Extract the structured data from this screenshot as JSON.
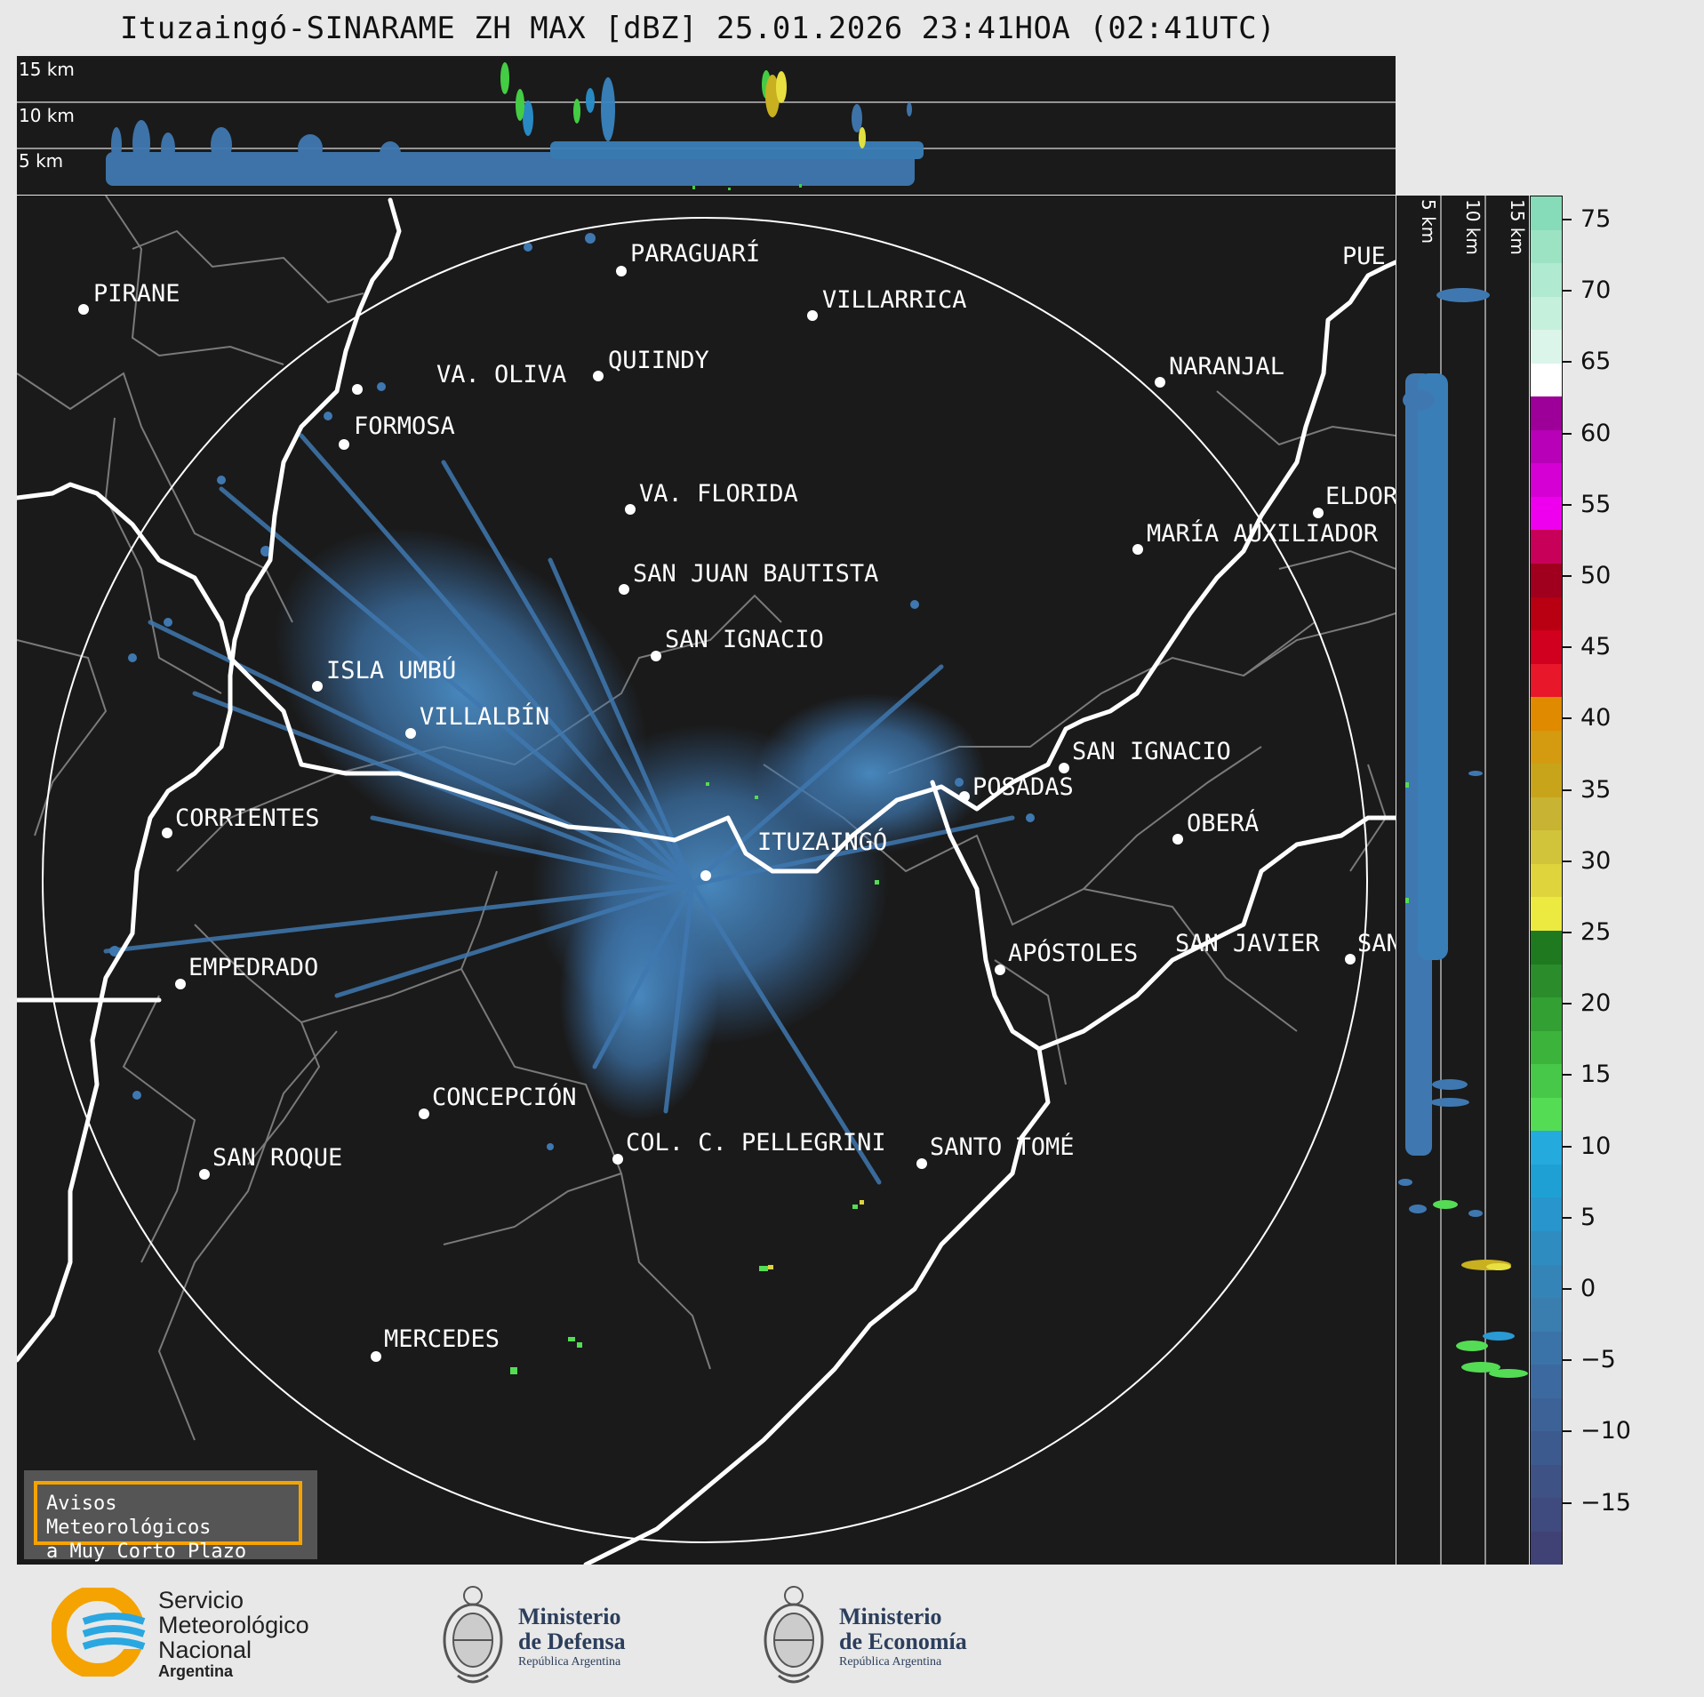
{
  "title": "Ituzaingó-SINARAME ZH MAX [dBZ] 25.01.2026 23:41HOA (02:41UTC)",
  "top_panel": {
    "height_labels": [
      "15 km",
      "10 km",
      "5 km"
    ]
  },
  "side_panel": {
    "height_labels": [
      "5 km",
      "10 km",
      "15 km"
    ]
  },
  "colorbar": {
    "ticks": [
      "75",
      "70",
      "65",
      "60",
      "55",
      "50",
      "45",
      "40",
      "35",
      "30",
      "25",
      "20",
      "15",
      "10",
      "5",
      "0",
      "−5",
      "−10",
      "−15"
    ],
    "colors": [
      "#86dcb8",
      "#9be3c3",
      "#b0ead0",
      "#c5f0dc",
      "#dcf5ea",
      "#ffffff",
      "#9c0099",
      "#b800b8",
      "#d400d4",
      "#ee00ee",
      "#c8005a",
      "#a0001e",
      "#b80012",
      "#d0001e",
      "#e8172a",
      "#e08a00",
      "#d49a10",
      "#c8a41a",
      "#c8b432",
      "#d2c43a",
      "#e0d43c",
      "#ecea40",
      "#1f7a1f",
      "#2a8c2a",
      "#33a033",
      "#3cb43c",
      "#48c848",
      "#55dc55",
      "#24aadc",
      "#1fa0d4",
      "#2896cc",
      "#2f8cc0",
      "#3484b8",
      "#3a7eb0",
      "#3a73a8",
      "#3c6aa0",
      "#3c6298",
      "#3d5a8e",
      "#3e5286",
      "#3f4a7e",
      "#404276"
    ]
  },
  "cities": [
    {
      "name": "PIRANE"
    },
    {
      "name": "PARAGUARÍ"
    },
    {
      "name": "VILLARRICA"
    },
    {
      "name": "VA. OLIVA"
    },
    {
      "name": "QUIINDY"
    },
    {
      "name": "NARANJAL"
    },
    {
      "name": "FORMOSA"
    },
    {
      "name": "VA. FLORIDA"
    },
    {
      "name": "ELDOR"
    },
    {
      "name": "MARÍA AUXILIADOR"
    },
    {
      "name": "SAN JUAN BAUTISTA"
    },
    {
      "name": "SAN IGNACIO"
    },
    {
      "name": "ISLA UMBÚ"
    },
    {
      "name": "VILLALBÍN"
    },
    {
      "name": "SAN IGNACIO"
    },
    {
      "name": "POSADAS"
    },
    {
      "name": "CORRIENTES"
    },
    {
      "name": "ITUZAINGÓ"
    },
    {
      "name": "OBERÁ"
    },
    {
      "name": "APÓSTOLES"
    },
    {
      "name": "SAN JAVIER"
    },
    {
      "name": "SAN"
    },
    {
      "name": "EMPEDRADO"
    },
    {
      "name": "CONCEPCIÓN"
    },
    {
      "name": "COL. C. PELLEGRINI"
    },
    {
      "name": "SANTO TOMÉ"
    },
    {
      "name": "SAN ROQUE"
    },
    {
      "name": "MERCEDES"
    },
    {
      "name": "PUE"
    }
  ],
  "avisos": {
    "line1": "Avisos Meteorológicos",
    "line2": "a Muy Corto Plazo"
  },
  "logos": {
    "smn": [
      "Servicio",
      "Meteorológico",
      "Nacional",
      "Argentina"
    ],
    "defensa": [
      "Ministerio",
      "de Defensa",
      "República Argentina"
    ],
    "economia": [
      "Ministerio",
      "de Economía",
      "República Argentina"
    ]
  }
}
